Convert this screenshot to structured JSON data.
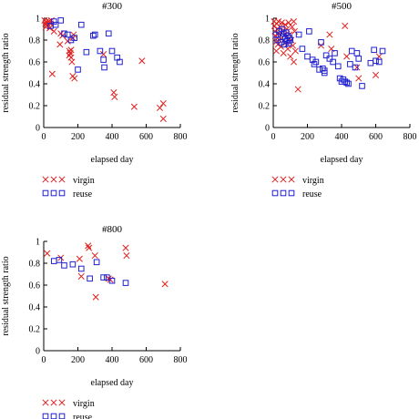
{
  "colors": {
    "virgin": "#e02020",
    "reuse": "#2020d0",
    "axis": "#000000"
  },
  "chart_data": [
    {
      "type": "scatter",
      "title": "#300",
      "xlabel": "elapsed day",
      "ylabel": "residual strength ratio",
      "xlim": [
        0,
        800
      ],
      "ylim": [
        0,
        1
      ],
      "xticks": [
        "0",
        "200",
        "400",
        "600",
        "800"
      ],
      "yticks": [
        "0",
        "0.2",
        "0.4",
        "0.6",
        "0.8",
        "1"
      ],
      "grid": false,
      "legend_position": "below",
      "series": [
        {
          "name": "virgin",
          "marker": "x",
          "points": [
            [
              5,
              0.98
            ],
            [
              10,
              0.95
            ],
            [
              12,
              0.92
            ],
            [
              15,
              0.97
            ],
            [
              18,
              0.93
            ],
            [
              20,
              0.96
            ],
            [
              25,
              0.94
            ],
            [
              30,
              0.97
            ],
            [
              35,
              0.91
            ],
            [
              40,
              0.95
            ],
            [
              45,
              0.98
            ],
            [
              50,
              0.49
            ],
            [
              60,
              0.88
            ],
            [
              95,
              0.76
            ],
            [
              100,
              0.86
            ],
            [
              110,
              0.84
            ],
            [
              140,
              0.79
            ],
            [
              150,
              0.7
            ],
            [
              150,
              0.66
            ],
            [
              155,
              0.68
            ],
            [
              160,
              0.71
            ],
            [
              160,
              0.64
            ],
            [
              165,
              0.6
            ],
            [
              170,
              0.82
            ],
            [
              170,
              0.47
            ],
            [
              175,
              0.85
            ],
            [
              180,
              0.45
            ],
            [
              350,
              0.67
            ],
            [
              410,
              0.32
            ],
            [
              415,
              0.28
            ],
            [
              530,
              0.19
            ],
            [
              575,
              0.61
            ],
            [
              680,
              0.18
            ],
            [
              700,
              0.22
            ],
            [
              700,
              0.08
            ]
          ]
        },
        {
          "name": "reuse",
          "marker": "square",
          "points": [
            [
              40,
              0.93
            ],
            [
              60,
              0.97
            ],
            [
              70,
              0.94
            ],
            [
              100,
              0.98
            ],
            [
              120,
              0.86
            ],
            [
              140,
              0.85
            ],
            [
              160,
              0.8
            ],
            [
              180,
              0.82
            ],
            [
              200,
              0.53
            ],
            [
              220,
              0.94
            ],
            [
              250,
              0.69
            ],
            [
              290,
              0.84
            ],
            [
              300,
              0.85
            ],
            [
              330,
              0.7
            ],
            [
              350,
              0.62
            ],
            [
              355,
              0.55
            ],
            [
              380,
              0.86
            ],
            [
              400,
              0.7
            ],
            [
              430,
              0.64
            ],
            [
              445,
              0.6
            ]
          ]
        }
      ]
    },
    {
      "type": "scatter",
      "title": "#500",
      "xlabel": "elapsed day",
      "ylabel": "residual strength ratio",
      "xlim": [
        0,
        800
      ],
      "ylim": [
        0,
        1
      ],
      "xticks": [
        "0",
        "200",
        "400",
        "600",
        "800"
      ],
      "yticks": [
        "0",
        "0.2",
        "0.4",
        "0.6",
        "0.8",
        "1"
      ],
      "grid": false,
      "legend_position": "below",
      "series": [
        {
          "name": "virgin",
          "marker": "x",
          "points": [
            [
              5,
              0.97
            ],
            [
              8,
              0.93
            ],
            [
              10,
              0.88
            ],
            [
              12,
              0.84
            ],
            [
              15,
              0.78
            ],
            [
              18,
              0.7
            ],
            [
              20,
              0.95
            ],
            [
              22,
              0.9
            ],
            [
              25,
              0.82
            ],
            [
              28,
              0.76
            ],
            [
              30,
              0.97
            ],
            [
              32,
              0.86
            ],
            [
              35,
              0.8
            ],
            [
              40,
              0.92
            ],
            [
              45,
              0.74
            ],
            [
              50,
              0.96
            ],
            [
              55,
              0.88
            ],
            [
              60,
              0.68
            ],
            [
              65,
              0.84
            ],
            [
              70,
              0.94
            ],
            [
              75,
              0.78
            ],
            [
              80,
              0.9
            ],
            [
              85,
              0.72
            ],
            [
              90,
              0.96
            ],
            [
              95,
              0.85
            ],
            [
              100,
              0.65
            ],
            [
              105,
              0.8
            ],
            [
              110,
              0.92
            ],
            [
              115,
              0.75
            ],
            [
              120,
              0.97
            ],
            [
              120,
              0.6
            ],
            [
              125,
              0.88
            ],
            [
              130,
              0.7
            ],
            [
              145,
              0.35
            ],
            [
              280,
              0.75
            ],
            [
              330,
              0.85
            ],
            [
              340,
              0.72
            ],
            [
              420,
              0.93
            ],
            [
              430,
              0.65
            ],
            [
              490,
              0.55
            ],
            [
              500,
              0.45
            ],
            [
              600,
              0.48
            ],
            [
              620,
              0.65
            ]
          ]
        },
        {
          "name": "reuse",
          "marker": "square",
          "points": [
            [
              15,
              0.85
            ],
            [
              25,
              0.8
            ],
            [
              35,
              0.88
            ],
            [
              45,
              0.78
            ],
            [
              50,
              0.9
            ],
            [
              55,
              0.83
            ],
            [
              60,
              0.86
            ],
            [
              65,
              0.76
            ],
            [
              70,
              0.81
            ],
            [
              75,
              0.87
            ],
            [
              80,
              0.79
            ],
            [
              85,
              0.84
            ],
            [
              90,
              0.77
            ],
            [
              95,
              0.82
            ],
            [
              100,
              0.8
            ],
            [
              150,
              0.85
            ],
            [
              170,
              0.72
            ],
            [
              200,
              0.65
            ],
            [
              210,
              0.88
            ],
            [
              230,
              0.62
            ],
            [
              240,
              0.58
            ],
            [
              250,
              0.6
            ],
            [
              270,
              0.53
            ],
            [
              280,
              0.78
            ],
            [
              290,
              0.54
            ],
            [
              300,
              0.52
            ],
            [
              300,
              0.5
            ],
            [
              310,
              0.66
            ],
            [
              330,
              0.63
            ],
            [
              350,
              0.6
            ],
            [
              360,
              0.68
            ],
            [
              380,
              0.56
            ],
            [
              390,
              0.45
            ],
            [
              400,
              0.42
            ],
            [
              410,
              0.44
            ],
            [
              420,
              0.42
            ],
            [
              430,
              0.41
            ],
            [
              440,
              0.4
            ],
            [
              450,
              0.58
            ],
            [
              460,
              0.7
            ],
            [
              480,
              0.55
            ],
            [
              490,
              0.68
            ],
            [
              500,
              0.63
            ],
            [
              520,
              0.38
            ],
            [
              570,
              0.59
            ],
            [
              590,
              0.71
            ],
            [
              600,
              0.61
            ],
            [
              620,
              0.6
            ],
            [
              640,
              0.7
            ]
          ]
        }
      ]
    },
    {
      "type": "scatter",
      "title": "#800",
      "xlabel": "elapsed day",
      "ylabel": "residual strength ratio",
      "xlim": [
        0,
        800
      ],
      "ylim": [
        0,
        1
      ],
      "xticks": [
        "0",
        "200",
        "400",
        "600",
        "800"
      ],
      "yticks": [
        "0",
        "0.2",
        "0.4",
        "0.6",
        "0.8",
        "1"
      ],
      "grid": false,
      "legend_position": "below",
      "series": [
        {
          "name": "virgin",
          "marker": "x",
          "points": [
            [
              20,
              0.89
            ],
            [
              100,
              0.85
            ],
            [
              210,
              0.84
            ],
            [
              220,
              0.68
            ],
            [
              260,
              0.96
            ],
            [
              265,
              0.94
            ],
            [
              300,
              0.87
            ],
            [
              305,
              0.49
            ],
            [
              380,
              0.66
            ],
            [
              390,
              0.65
            ],
            [
              480,
              0.94
            ],
            [
              485,
              0.87
            ],
            [
              710,
              0.61
            ]
          ]
        },
        {
          "name": "reuse",
          "marker": "square",
          "points": [
            [
              60,
              0.82
            ],
            [
              90,
              0.83
            ],
            [
              120,
              0.78
            ],
            [
              170,
              0.79
            ],
            [
              220,
              0.75
            ],
            [
              270,
              0.66
            ],
            [
              310,
              0.81
            ],
            [
              350,
              0.67
            ],
            [
              370,
              0.67
            ],
            [
              400,
              0.64
            ],
            [
              480,
              0.62
            ]
          ]
        }
      ]
    }
  ]
}
